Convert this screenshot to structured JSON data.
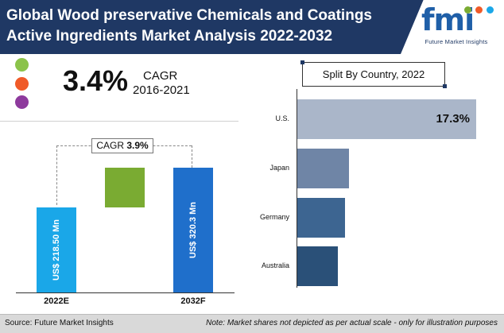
{
  "header": {
    "title_line1": "Global Wood  preservative Chemicals and Coatings",
    "title_line2": "Active Ingredients Market Analysis 2022-2032"
  },
  "logo": {
    "mark": "fmi",
    "text": "Future Market Insights",
    "dot_colors": [
      "#7aab32",
      "#f05a28",
      "#1aa7e8"
    ]
  },
  "legend_dots": {
    "colors": [
      "#8bc34a",
      "#f05a28",
      "#8e3a9d"
    ]
  },
  "cagr_summary": {
    "value": "3.4%",
    "label": "CAGR",
    "period": "2016-2021"
  },
  "colors": {
    "header_bg": "#1f3864",
    "bar_2022": "#1aa7e8",
    "bar_growth": "#7aab32",
    "bar_2032": "#1f6fcb"
  },
  "chart_data": [
    {
      "type": "bar",
      "orientation": "vertical",
      "categories": [
        "2022E",
        "2032F"
      ],
      "values": [
        218.5,
        320.3
      ],
      "value_labels": [
        "US$ 218.50 Mn",
        "US$ 320.3 Mn"
      ],
      "cagr_label": "CAGR",
      "cagr_value": "3.9%",
      "increment": 101.8
    },
    {
      "type": "bar",
      "orientation": "horizontal",
      "title": "Split By Country, 2022",
      "categories": [
        "U.S.",
        "Japan",
        "Germany",
        "Australia"
      ],
      "values": [
        17.3,
        5.0,
        4.6,
        3.9
      ],
      "labels": [
        "17.3%",
        "",
        "",
        ""
      ],
      "colors": [
        "#aab6c9",
        "#6f85a6",
        "#3d6591",
        "#2a5078"
      ],
      "xlim": [
        0,
        17.3
      ]
    }
  ],
  "footer": {
    "source": "Source: Future Market Insights",
    "note": "Note: Market shares not depicted as per actual scale - only for illustration purposes"
  }
}
